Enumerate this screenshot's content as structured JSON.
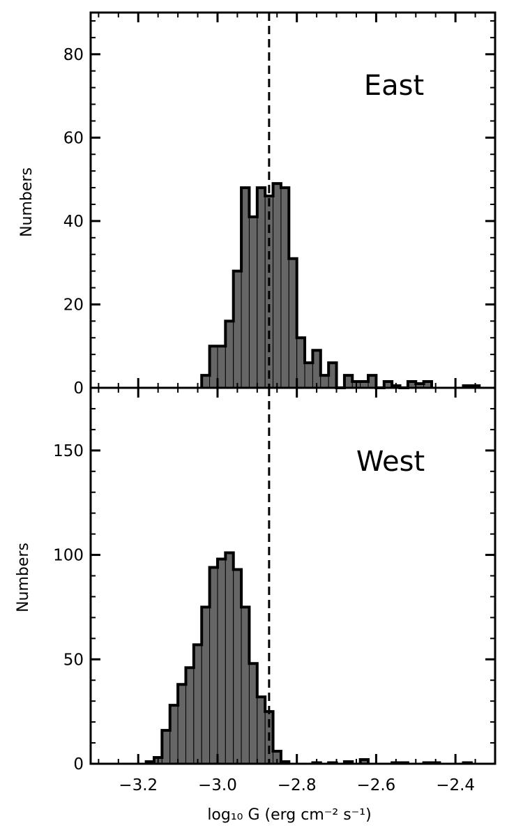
{
  "chart_data": [
    {
      "type": "bar",
      "panel_label": "East",
      "ylabel": "Numbers",
      "xlabel": "",
      "xlim": [
        -3.32,
        -2.3
      ],
      "ylim": [
        0,
        90
      ],
      "xticks": [
        -3.2,
        -3.0,
        -2.8,
        -2.6,
        -2.4
      ],
      "yticks": [
        0,
        20,
        40,
        60,
        80
      ],
      "ytick_labels": [
        "0",
        "20",
        "40",
        "60",
        "80"
      ],
      "bin_width": 0.02,
      "bins": [
        [
          -3.03,
          3
        ],
        [
          -3.01,
          10
        ],
        [
          -2.99,
          10
        ],
        [
          -2.97,
          16
        ],
        [
          -2.95,
          28
        ],
        [
          -2.93,
          48
        ],
        [
          -2.91,
          41
        ],
        [
          -2.89,
          48
        ],
        [
          -2.87,
          46
        ],
        [
          -2.85,
          49
        ],
        [
          -2.83,
          48
        ],
        [
          -2.81,
          31
        ],
        [
          -2.79,
          12
        ],
        [
          -2.77,
          6
        ],
        [
          -2.75,
          9
        ],
        [
          -2.73,
          3
        ],
        [
          -2.71,
          6
        ],
        [
          -2.69,
          0
        ],
        [
          -2.67,
          3
        ],
        [
          -2.65,
          1.5
        ],
        [
          -2.63,
          1.5
        ],
        [
          -2.61,
          3
        ],
        [
          -2.59,
          0
        ],
        [
          -2.57,
          1.5
        ],
        [
          -2.55,
          0.5
        ],
        [
          -2.53,
          0
        ],
        [
          -2.51,
          1.5
        ],
        [
          -2.49,
          1
        ],
        [
          -2.47,
          1.5
        ],
        [
          -2.37,
          0.5
        ],
        [
          -2.35,
          0.5
        ]
      ],
      "vline_x": -2.87
    },
    {
      "type": "bar",
      "panel_label": "West",
      "ylabel": "Numbers",
      "xlabel": "log₁₀ G (erg cm⁻² s⁻¹)",
      "xlim": [
        -3.32,
        -2.3
      ],
      "ylim": [
        0,
        180
      ],
      "xticks": [
        -3.2,
        -3.0,
        -2.8,
        -2.6,
        -2.4
      ],
      "xtick_labels": [
        "−3.2",
        "−3.0",
        "−2.8",
        "−2.6",
        "−2.4"
      ],
      "yticks": [
        0,
        50,
        100,
        150
      ],
      "ytick_labels": [
        "0",
        "50",
        "100",
        "150"
      ],
      "bin_width": 0.02,
      "bins": [
        [
          -3.17,
          1
        ],
        [
          -3.15,
          3
        ],
        [
          -3.13,
          16
        ],
        [
          -3.11,
          28
        ],
        [
          -3.09,
          38
        ],
        [
          -3.07,
          46
        ],
        [
          -3.05,
          57
        ],
        [
          -3.03,
          75
        ],
        [
          -3.01,
          94
        ],
        [
          -2.99,
          98
        ],
        [
          -2.97,
          101
        ],
        [
          -2.95,
          93
        ],
        [
          -2.93,
          75
        ],
        [
          -2.91,
          48
        ],
        [
          -2.89,
          32
        ],
        [
          -2.87,
          25
        ],
        [
          -2.85,
          6
        ],
        [
          -2.83,
          1
        ],
        [
          -2.75,
          0.5
        ],
        [
          -2.71,
          0.5
        ],
        [
          -2.67,
          1
        ],
        [
          -2.63,
          2
        ],
        [
          -2.55,
          0.5
        ],
        [
          -2.53,
          0.5
        ],
        [
          -2.47,
          0.5
        ],
        [
          -2.45,
          0.5
        ],
        [
          -2.37,
          0.5
        ]
      ],
      "vline_x": -2.87
    }
  ],
  "colors": {
    "bar_fill": "#666666",
    "bar_edge": "#000000",
    "axis": "#000000"
  }
}
